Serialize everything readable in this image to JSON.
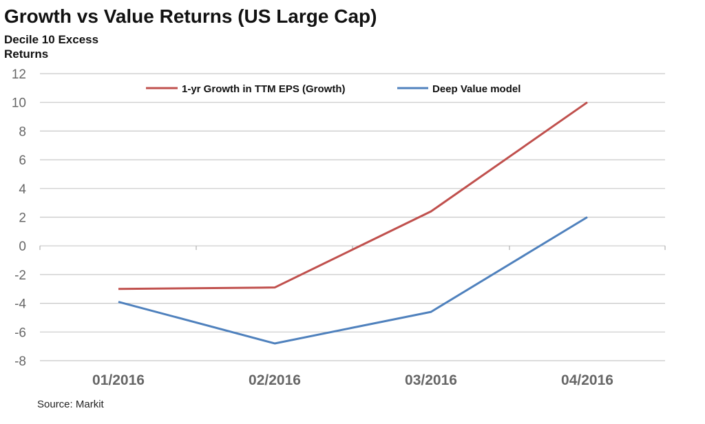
{
  "chart_data": {
    "type": "line",
    "title": "Growth vs Value Returns (US Large Cap)",
    "ylabel": "Decile 10 Excess Returns",
    "xlabel": "",
    "categories": [
      "01/2016",
      "02/2016",
      "03/2016",
      "04/2016"
    ],
    "ylim": [
      -8,
      12
    ],
    "yticks": [
      12,
      10,
      8,
      6,
      4,
      2,
      0,
      -2,
      -4,
      -6,
      -8
    ],
    "grid": true,
    "legend_position": "top",
    "series": [
      {
        "name": "1-yr Growth in TTM EPS (Growth)",
        "color": "#c0504d",
        "values": [
          -3.0,
          -2.9,
          2.4,
          10.0
        ]
      },
      {
        "name": "Deep Value model",
        "color": "#4f81bd",
        "values": [
          -3.9,
          -6.8,
          -4.6,
          2.0
        ]
      }
    ],
    "source": "Source: Markit"
  }
}
